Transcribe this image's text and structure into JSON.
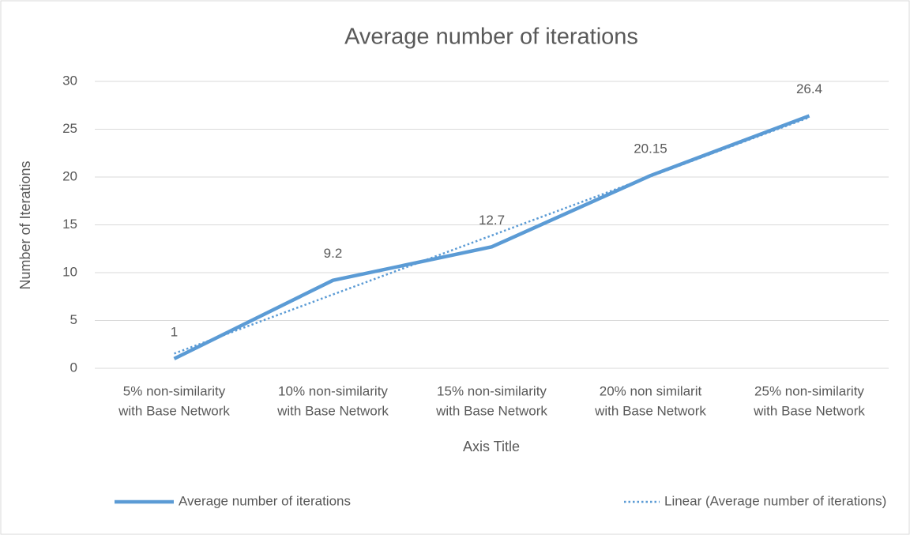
{
  "chart_data": {
    "type": "line",
    "title": "Average number of iterations",
    "x_label": "Axis Title",
    "y_label": "Number of Iterations",
    "categories": [
      [
        "5% non-similarity",
        "with Base Network"
      ],
      [
        "10% non-similarity",
        "with Base Network"
      ],
      [
        "15% non-similarity",
        "with Base Network"
      ],
      [
        "20% non similarit",
        "with Base Network"
      ],
      [
        "25% non-similarity",
        "with Base Network"
      ]
    ],
    "series": [
      {
        "name": "Average number of iterations",
        "color": "#5b9bd5",
        "style": "solid",
        "data_labels": true,
        "values": [
          1,
          9.2,
          12.7,
          20.15,
          26.4
        ]
      },
      {
        "name": "Linear (Average number of iterations)",
        "color": "#5b9bd5",
        "style": "dotted",
        "data_labels": false,
        "values": [
          1.54,
          7.72,
          13.89,
          20.07,
          26.24
        ]
      }
    ],
    "ylim": [
      0,
      30
    ],
    "yticks": [
      0,
      5,
      10,
      15,
      20,
      25,
      30
    ],
    "grid": true,
    "legend": "bottom"
  }
}
